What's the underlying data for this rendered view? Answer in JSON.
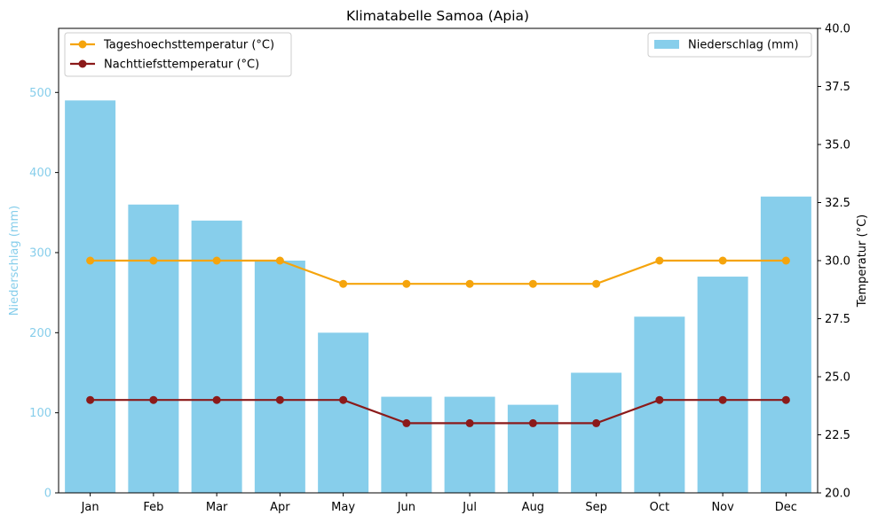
{
  "chart_data": {
    "type": "bar",
    "title": "Klimatabelle Samoa (Apia)",
    "categories": [
      "Jan",
      "Feb",
      "Mar",
      "Apr",
      "May",
      "Jun",
      "Jul",
      "Aug",
      "Sep",
      "Oct",
      "Nov",
      "Dec"
    ],
    "bar_series": {
      "name": "Niederschlag (mm)",
      "values": [
        490,
        360,
        340,
        290,
        200,
        120,
        120,
        110,
        150,
        220,
        270,
        370
      ],
      "color": "#87CEEB"
    },
    "line_series": [
      {
        "name": "Tageshoechsttemperatur (°C)",
        "values": [
          30,
          30,
          30,
          30,
          29,
          29,
          29,
          29,
          29,
          30,
          30,
          30
        ],
        "color": "#F5A40C"
      },
      {
        "name": "Nachttiefsttemperatur (°C)",
        "values": [
          24,
          24,
          24,
          24,
          24,
          23,
          23,
          23,
          23,
          24,
          24,
          24
        ],
        "color": "#8B1A1A"
      }
    ],
    "y_left": {
      "label": "Niederschlag (mm)",
      "range": [
        0,
        580
      ],
      "ticks": [
        0,
        100,
        200,
        300,
        400,
        500
      ],
      "tick_labels": [
        "0",
        "100",
        "200",
        "300",
        "400",
        "500"
      ],
      "color": "#87CEEB"
    },
    "y_right": {
      "label": "Temperatur (°C)",
      "range": [
        20,
        40
      ],
      "ticks": [
        20,
        22.5,
        25,
        27.5,
        30,
        32.5,
        35,
        37.5,
        40
      ],
      "tick_labels": [
        "20.0",
        "22.5",
        "25.0",
        "27.5",
        "30.0",
        "32.5",
        "35.0",
        "37.5",
        "40.0"
      ]
    },
    "grid": false,
    "legend_lines_position": "top-left",
    "legend_bars_position": "top-right"
  }
}
